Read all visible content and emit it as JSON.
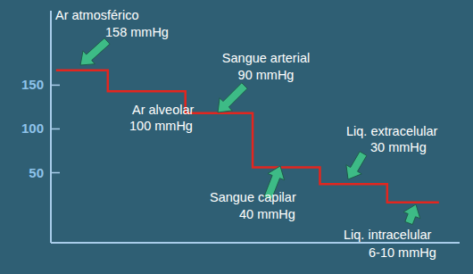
{
  "chart_data": {
    "type": "step",
    "x": [
      0,
      1,
      2.5,
      3.8,
      5.1,
      6.4,
      7.4
    ],
    "xlim": [
      -0.1,
      7.8
    ],
    "series": [
      {
        "color": "#e3261f",
        "values": [
          167,
          143,
          118,
          56,
          37,
          16,
          16
        ]
      }
    ],
    "ylim": [
      -30,
      235
    ],
    "yticks": [
      50,
      100,
      150
    ],
    "tick_labels": "y",
    "grid": false,
    "annotations": [
      {
        "lines": [
          "Ar atmosférico",
          "158 mmHg"
        ]
      },
      {
        "lines": [
          "Ar alveolar",
          "100 mmHg"
        ]
      },
      {
        "lines": [
          "Sangue arterial",
          "90 mmHg"
        ]
      },
      {
        "lines": [
          "Sangue capilar",
          "40 mmHg"
        ]
      },
      {
        "lines": [
          "Liq. extracelular",
          "30 mmHg"
        ]
      },
      {
        "lines": [
          "Liq. intracelular",
          "6-10 mmHg"
        ]
      }
    ]
  }
}
